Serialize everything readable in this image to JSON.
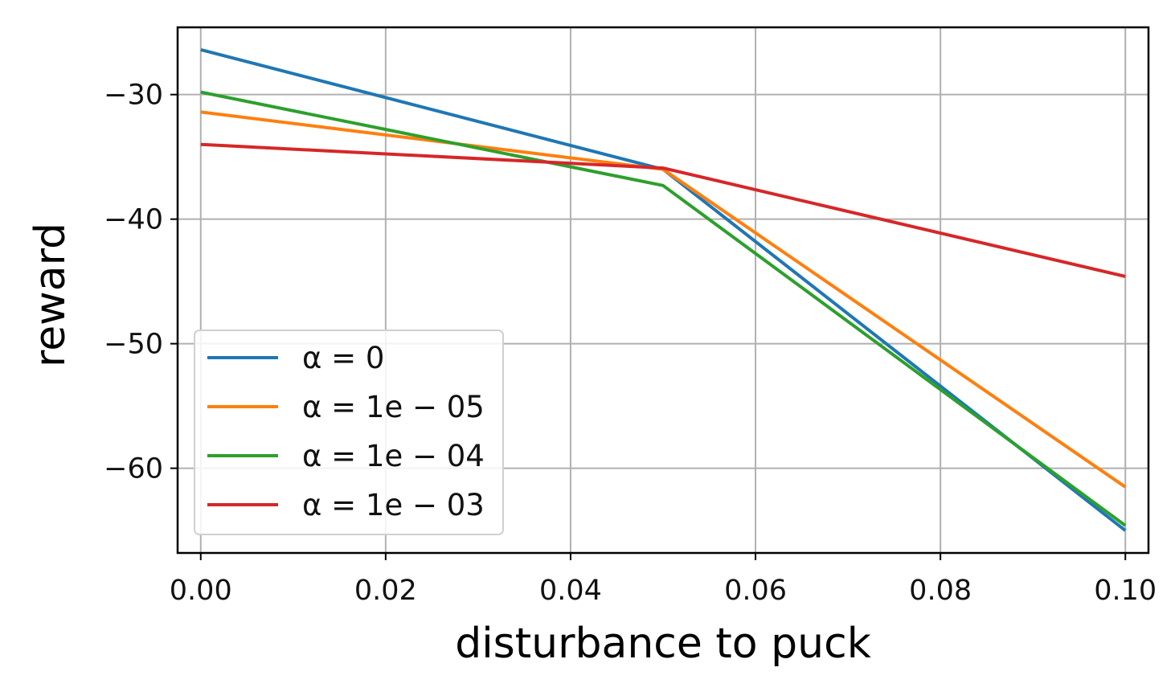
{
  "chart_data": {
    "type": "line",
    "xlabel": "disturbance to puck",
    "ylabel": "reward",
    "x": [
      0.0,
      0.05,
      0.1
    ],
    "xlim": [
      -0.0025,
      0.1025
    ],
    "ylim": [
      -66.8,
      -24.6
    ],
    "xticks": [
      0.0,
      0.02,
      0.04,
      0.06,
      0.08,
      0.1
    ],
    "xtick_labels": [
      "0.00",
      "0.02",
      "0.04",
      "0.06",
      "0.08",
      "0.10"
    ],
    "yticks": [
      -60,
      -50,
      -40,
      -30
    ],
    "ytick_labels": [
      "−60",
      "−50",
      "−40",
      "−30"
    ],
    "grid": true,
    "legend_position": "lower-left",
    "series": [
      {
        "name": "α = 0",
        "color": "#1f77b4",
        "values": [
          -26.4,
          -36.0,
          -65.0
        ]
      },
      {
        "name": "α = 1e − 05",
        "color": "#ff7f0e",
        "values": [
          -31.4,
          -36.0,
          -61.5
        ]
      },
      {
        "name": "α = 1e − 04",
        "color": "#2ca02c",
        "values": [
          -29.8,
          -37.3,
          -64.6
        ]
      },
      {
        "name": "α = 1e − 03",
        "color": "#d62728",
        "values": [
          -34.0,
          -35.9,
          -44.6
        ]
      }
    ]
  }
}
